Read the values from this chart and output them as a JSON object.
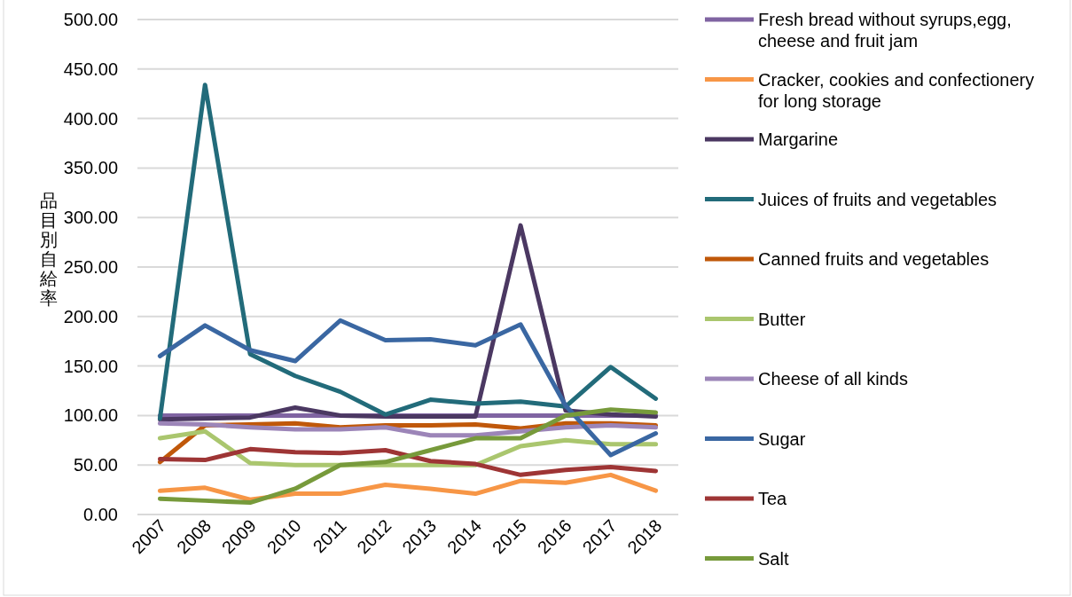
{
  "chart_data": {
    "type": "line",
    "ylabel": "品目別自給率",
    "categories": [
      "2007",
      "2008",
      "2009",
      "2010",
      "2011",
      "2012",
      "2013",
      "2014",
      "2015",
      "2016",
      "2017",
      "2018"
    ],
    "ylim": [
      0,
      500
    ],
    "yticks": [
      {
        "value": 0,
        "label": "0.00"
      },
      {
        "value": 50,
        "label": "50.00"
      },
      {
        "value": 100,
        "label": "100.00"
      },
      {
        "value": 150,
        "label": "150.00"
      },
      {
        "value": 200,
        "label": "200.00"
      },
      {
        "value": 250,
        "label": "250.00"
      },
      {
        "value": 300,
        "label": "300.00"
      },
      {
        "value": 350,
        "label": "350.00"
      },
      {
        "value": 400,
        "label": "400.00"
      },
      {
        "value": 450,
        "label": "450.00"
      },
      {
        "value": 500,
        "label": "500.00"
      }
    ],
    "grid": "y",
    "legend": "right",
    "marker": "none",
    "line_style": "solid",
    "series": [
      {
        "name": "Fresh bread without syrups,egg, cheese and fruit jam",
        "color": "#8064a2",
        "values": [
          100,
          100,
          100,
          100,
          100,
          100,
          100,
          100,
          100,
          100,
          100,
          100
        ]
      },
      {
        "name": "Cracker, cookies and confectionery for long storage",
        "color": "#f79646",
        "values": [
          24,
          27,
          15,
          21,
          21,
          30,
          26,
          21,
          34,
          32,
          40,
          24
        ]
      },
      {
        "name": "Margarine",
        "color": "#4b3862",
        "values": [
          96,
          97,
          98,
          108,
          100,
          99,
          99,
          99,
          292,
          105,
          101,
          99
        ]
      },
      {
        "name": "Juices of fruits and vegetables",
        "color": "#226b7a",
        "values": [
          97,
          434,
          162,
          140,
          124,
          101,
          116,
          112,
          114,
          109,
          149,
          117
        ]
      },
      {
        "name": "Canned fruits and vegetables",
        "color": "#c0580a",
        "values": [
          53,
          90,
          91,
          92,
          88,
          90,
          90,
          91,
          87,
          92,
          92,
          90
        ]
      },
      {
        "name": "Butter",
        "color": "#aac66e",
        "values": [
          77,
          84,
          52,
          50,
          50,
          50,
          50,
          50,
          69,
          75,
          71,
          71
        ]
      },
      {
        "name": "Cheese of all kinds",
        "color": "#9c85b8",
        "values": [
          92,
          91,
          88,
          86,
          86,
          88,
          80,
          80,
          84,
          88,
          90,
          88
        ]
      },
      {
        "name": "Sugar",
        "color": "#3a67a2",
        "values": [
          160,
          191,
          166,
          155,
          196,
          176,
          177,
          171,
          192,
          110,
          60,
          82
        ]
      },
      {
        "name": "Tea",
        "color": "#9e3535",
        "values": [
          56,
          55,
          66,
          63,
          62,
          65,
          54,
          51,
          40,
          45,
          48,
          44
        ]
      },
      {
        "name": "Salt",
        "color": "#779a3b",
        "values": [
          16,
          14,
          12,
          26,
          50,
          53,
          65,
          77,
          77,
          100,
          106,
          103
        ]
      }
    ]
  }
}
